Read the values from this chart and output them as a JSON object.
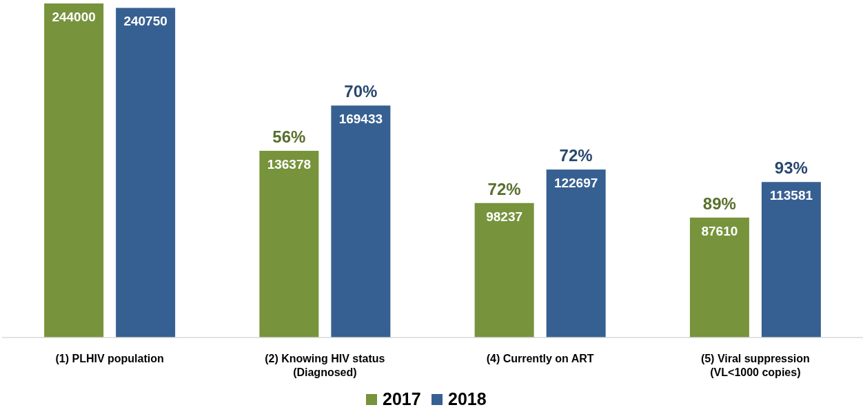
{
  "chart_data": {
    "type": "bar",
    "categories": [
      "(1) PLHIV population",
      "(2) Knowing HIV status\n(Diagnosed)",
      "(4) Currently on ART",
      "(5) Viral suppression\n(VL<1000 copies)"
    ],
    "series": [
      {
        "name": "2017",
        "color": "#77933c",
        "values": [
          244000,
          136378,
          98237,
          87610
        ]
      },
      {
        "name": "2018",
        "color": "#376092",
        "values": [
          240750,
          169433,
          122697,
          113581
        ]
      }
    ],
    "data_labels": true,
    "legend": "bottom",
    "annotations": [
      "56%",
      "70%",
      "72%",
      "72%",
      "89%",
      "93%"
    ]
  }
}
